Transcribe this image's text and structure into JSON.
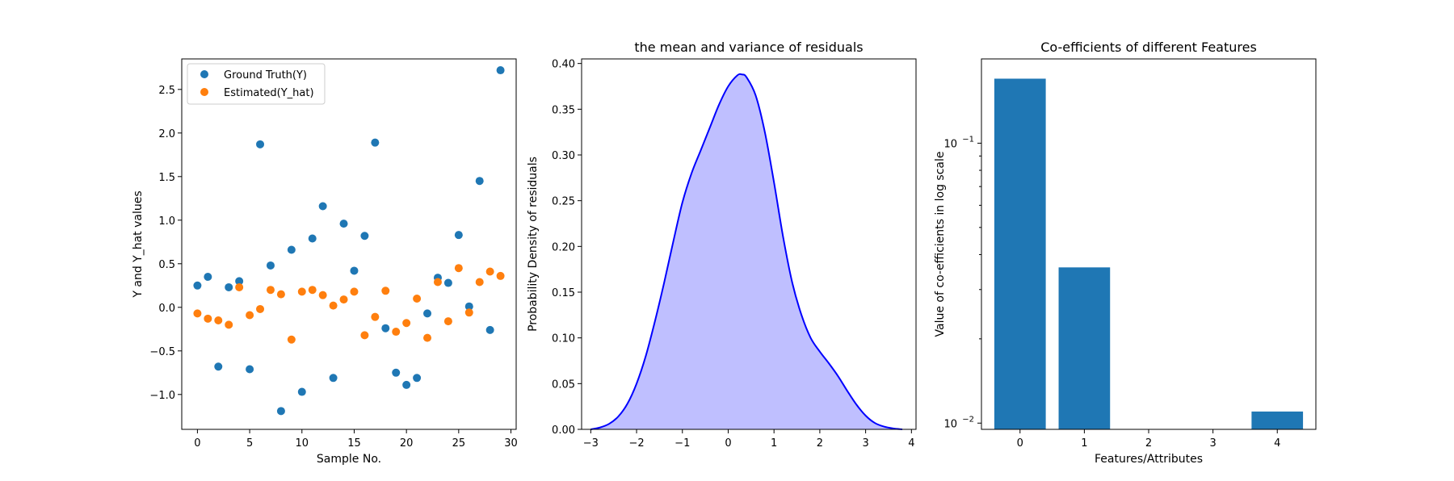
{
  "chart_data": [
    {
      "type": "scatter",
      "title": "",
      "xlabel": "Sample No.",
      "ylabel": "Y and Y_hat values",
      "xlim": [
        -1.5,
        30.5
      ],
      "ylim": [
        -1.4,
        2.85
      ],
      "xticks": [
        0,
        5,
        10,
        15,
        20,
        25,
        30
      ],
      "yticks": [
        -1.0,
        -0.5,
        0.0,
        0.5,
        1.0,
        1.5,
        2.0,
        2.5
      ],
      "legend_position": "top-left",
      "series": [
        {
          "name": "Ground Truth(Y)",
          "color": "#1f77b4",
          "x": [
            0,
            1,
            2,
            3,
            4,
            5,
            6,
            7,
            8,
            9,
            10,
            11,
            12,
            13,
            14,
            15,
            16,
            17,
            18,
            19,
            20,
            21,
            22,
            23,
            24,
            25,
            26,
            27,
            28,
            29
          ],
          "y": [
            0.25,
            0.35,
            -0.68,
            0.23,
            0.3,
            -0.71,
            1.87,
            0.48,
            -1.19,
            0.66,
            -0.97,
            0.79,
            1.16,
            -0.81,
            0.96,
            0.42,
            0.82,
            1.89,
            -0.24,
            -0.75,
            -0.89,
            -0.81,
            -0.07,
            0.34,
            0.28,
            0.83,
            0.01,
            1.45,
            -0.26,
            2.72
          ]
        },
        {
          "name": "Estimated(Y_hat)",
          "color": "#ff7f0e",
          "x": [
            0,
            1,
            2,
            3,
            4,
            5,
            6,
            7,
            8,
            9,
            10,
            11,
            12,
            13,
            14,
            15,
            16,
            17,
            18,
            19,
            20,
            21,
            22,
            23,
            24,
            25,
            26,
            27,
            28,
            29
          ],
          "y": [
            -0.07,
            -0.13,
            -0.15,
            -0.2,
            0.23,
            -0.09,
            -0.02,
            0.2,
            0.15,
            -0.37,
            0.18,
            0.2,
            0.14,
            0.02,
            0.09,
            0.18,
            -0.32,
            -0.11,
            0.19,
            -0.28,
            -0.18,
            0.1,
            -0.35,
            0.29,
            -0.16,
            0.45,
            -0.06,
            0.29,
            0.41,
            0.36
          ]
        }
      ]
    },
    {
      "type": "area",
      "title": "the mean and variance of residuals",
      "xlabel": "",
      "ylabel": "Probability Density of residuals",
      "xlim": [
        -3.2,
        4.1
      ],
      "ylim": [
        0,
        0.405
      ],
      "xticks": [
        -3,
        -2,
        -1,
        0,
        1,
        2,
        3,
        4
      ],
      "yticks": [
        0.0,
        0.05,
        0.1,
        0.15,
        0.2,
        0.25,
        0.3,
        0.35,
        0.4
      ],
      "line_color": "#0000ff",
      "fill_color": "#bfbfff",
      "x": [
        -3.0,
        -2.8,
        -2.6,
        -2.4,
        -2.2,
        -2.0,
        -1.8,
        -1.6,
        -1.4,
        -1.2,
        -1.0,
        -0.8,
        -0.6,
        -0.4,
        -0.2,
        0.0,
        0.2,
        0.3,
        0.4,
        0.6,
        0.8,
        1.0,
        1.2,
        1.4,
        1.6,
        1.8,
        2.0,
        2.2,
        2.4,
        2.6,
        2.8,
        3.0,
        3.2,
        3.4,
        3.6,
        3.8
      ],
      "y": [
        0.0,
        0.002,
        0.006,
        0.014,
        0.028,
        0.05,
        0.08,
        0.118,
        0.16,
        0.205,
        0.248,
        0.28,
        0.305,
        0.33,
        0.355,
        0.375,
        0.387,
        0.388,
        0.385,
        0.365,
        0.325,
        0.27,
        0.21,
        0.16,
        0.125,
        0.1,
        0.085,
        0.072,
        0.058,
        0.042,
        0.027,
        0.015,
        0.007,
        0.003,
        0.001,
        0.0
      ]
    },
    {
      "type": "bar",
      "title": "Co-efficients of different Features",
      "xlabel": "Features/Attributes",
      "ylabel": "Value of co-efficients in log scale",
      "yscale": "log",
      "ylim": [
        0.0095,
        0.2
      ],
      "categories": [
        "0",
        "1",
        "2",
        "3",
        "4"
      ],
      "values": [
        0.17,
        0.036,
        0.0,
        0.0,
        0.011
      ],
      "color": "#1f77b4",
      "yticks": [
        {
          "value": 0.01,
          "label": "10",
          "exp": "−2"
        },
        {
          "value": 0.1,
          "label": "10",
          "exp": "−1"
        }
      ]
    }
  ]
}
